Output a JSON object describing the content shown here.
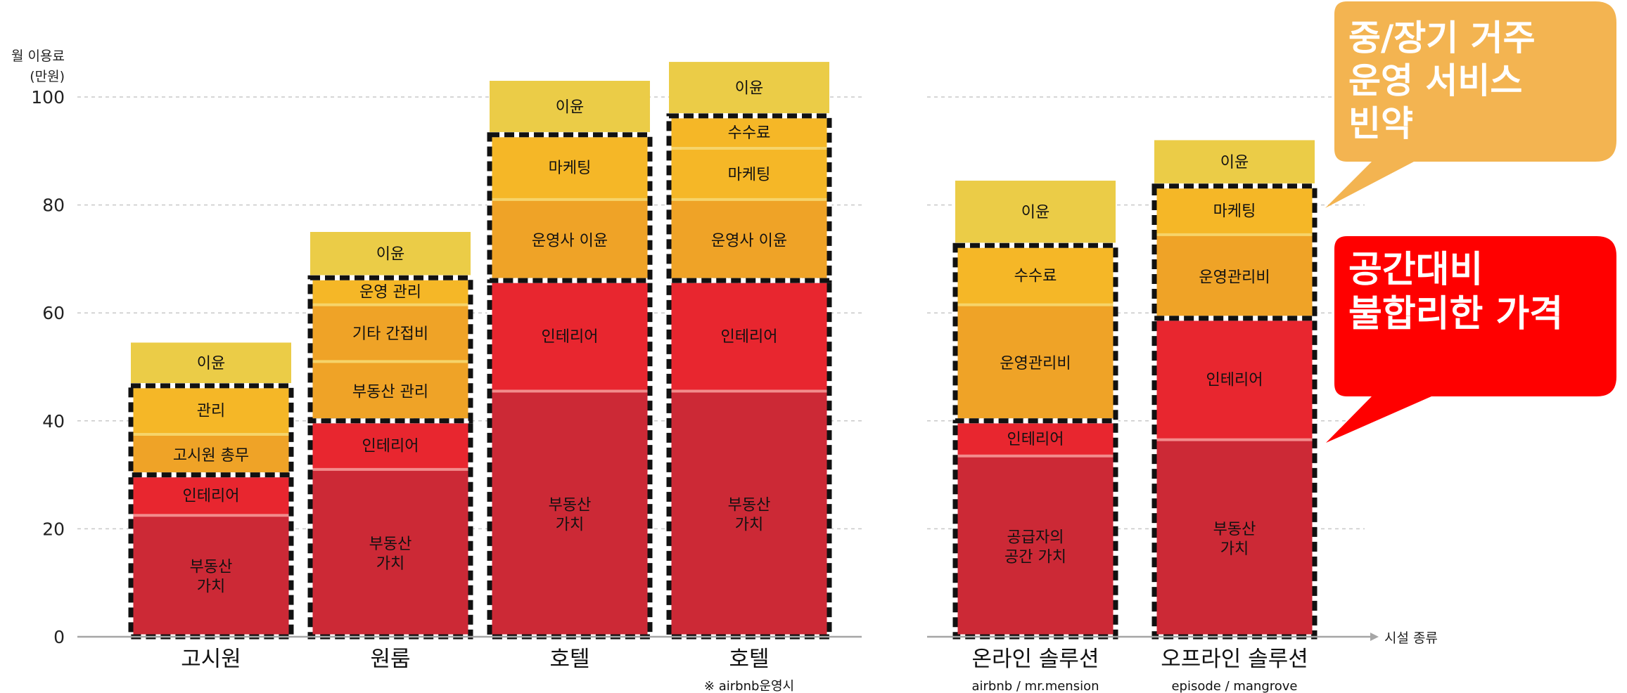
{
  "chart_data": {
    "type": "bar",
    "stacked": true,
    "ylabel_line1": "월 이용료",
    "ylabel_line2": "(만원)",
    "xlabel": "시설 종류",
    "ylim": [
      0,
      100
    ],
    "yticks": [
      0,
      20,
      40,
      60,
      80,
      100
    ],
    "grid": true,
    "bars": [
      {
        "label": "고시원",
        "sublabel": "",
        "segments": [
          {
            "name": "부동산\n가치",
            "start": 0,
            "end": 22.5,
            "color": "#cc2936"
          },
          {
            "name": "인테리어",
            "start": 22.5,
            "end": 30,
            "color": "#e8262f"
          },
          {
            "name": "고시원 총무",
            "start": 30,
            "end": 37.5,
            "color": "#efa327"
          },
          {
            "name": "관리",
            "start": 37.5,
            "end": 46.5,
            "color": "#f5b727"
          },
          {
            "name": "이윤",
            "start": 47,
            "end": 54.5,
            "color": "#ebcc47"
          }
        ],
        "boxes": [
          [
            0,
            30
          ],
          [
            30,
            46.5
          ]
        ]
      },
      {
        "label": "원룸",
        "sublabel": "",
        "segments": [
          {
            "name": "부동산\n가치",
            "start": 0,
            "end": 31,
            "color": "#cc2936"
          },
          {
            "name": "인테리어",
            "start": 31,
            "end": 40,
            "color": "#e8262f"
          },
          {
            "name": "부동산 관리",
            "start": 40,
            "end": 51,
            "color": "#efa327"
          },
          {
            "name": "기타 간접비",
            "start": 51,
            "end": 61.5,
            "color": "#efa327"
          },
          {
            "name": "운영 관리",
            "start": 61.5,
            "end": 66.5,
            "color": "#f5b727"
          },
          {
            "name": "이윤",
            "start": 67,
            "end": 75,
            "color": "#ebcc47"
          }
        ],
        "boxes": [
          [
            0,
            40
          ],
          [
            40,
            66.5
          ]
        ]
      },
      {
        "label": "호텔",
        "sublabel": "",
        "segments": [
          {
            "name": "부동산\n가치",
            "start": 0,
            "end": 45.5,
            "color": "#cc2936"
          },
          {
            "name": "인테리어",
            "start": 45.5,
            "end": 66,
            "color": "#e8262f"
          },
          {
            "name": "운영사 이윤",
            "start": 66,
            "end": 81,
            "color": "#efa327"
          },
          {
            "name": "마케팅",
            "start": 81,
            "end": 93,
            "color": "#f5b727"
          },
          {
            "name": "이윤",
            "start": 93.5,
            "end": 103,
            "color": "#ebcc47"
          }
        ],
        "boxes": [
          [
            0,
            66
          ],
          [
            66,
            93
          ]
        ]
      },
      {
        "label": "호텔",
        "sublabel": "※ airbnb운영시",
        "segments": [
          {
            "name": "부동산\n가치",
            "start": 0,
            "end": 45.5,
            "color": "#cc2936"
          },
          {
            "name": "인테리어",
            "start": 45.5,
            "end": 66,
            "color": "#e8262f"
          },
          {
            "name": "운영사 이윤",
            "start": 66,
            "end": 81,
            "color": "#efa327"
          },
          {
            "name": "마케팅",
            "start": 81,
            "end": 90.5,
            "color": "#f5b727"
          },
          {
            "name": "수수료",
            "start": 90.5,
            "end": 96.5,
            "color": "#f5b727"
          },
          {
            "name": "이윤",
            "start": 97,
            "end": 106.5,
            "color": "#ebcc47"
          }
        ],
        "boxes": [
          [
            0,
            66
          ],
          [
            66,
            96.5
          ]
        ]
      },
      {
        "label": "온라인 솔루션",
        "sublabel": "airbnb / mr.mension",
        "segments": [
          {
            "name": "공급자의\n공간 가치",
            "start": 0,
            "end": 33.5,
            "color": "#cc2936"
          },
          {
            "name": "인테리어",
            "start": 33.5,
            "end": 40,
            "color": "#e8262f"
          },
          {
            "name": "운영관리비",
            "start": 40,
            "end": 61.5,
            "color": "#efa327"
          },
          {
            "name": "수수료",
            "start": 61.5,
            "end": 72.5,
            "color": "#f5b727"
          },
          {
            "name": "이윤",
            "start": 73,
            "end": 84.5,
            "color": "#ebcc47"
          }
        ],
        "boxes": [
          [
            0,
            40
          ],
          [
            40,
            72.5
          ]
        ]
      },
      {
        "label": "오프라인 솔루션",
        "sublabel": "episode / mangrove",
        "segments": [
          {
            "name": "부동산\n가치",
            "start": 0,
            "end": 36.5,
            "color": "#cc2936"
          },
          {
            "name": "인테리어",
            "start": 36.5,
            "end": 59,
            "color": "#e8262f"
          },
          {
            "name": "운영관리비",
            "start": 59,
            "end": 74.5,
            "color": "#efa327"
          },
          {
            "name": "마케팅",
            "start": 74.5,
            "end": 83.5,
            "color": "#f5b727"
          },
          {
            "name": "이윤",
            "start": 84,
            "end": 92,
            "color": "#ebcc47"
          }
        ],
        "boxes": [
          [
            0,
            59
          ],
          [
            59,
            83.5
          ]
        ]
      }
    ],
    "annotations": [
      {
        "text": [
          "중/장기 거주",
          "운영 서비스",
          "빈약"
        ],
        "color": "#f3b451"
      },
      {
        "text": [
          "공간대비",
          "불합리한 가격"
        ],
        "color": "#ff0000"
      }
    ]
  }
}
